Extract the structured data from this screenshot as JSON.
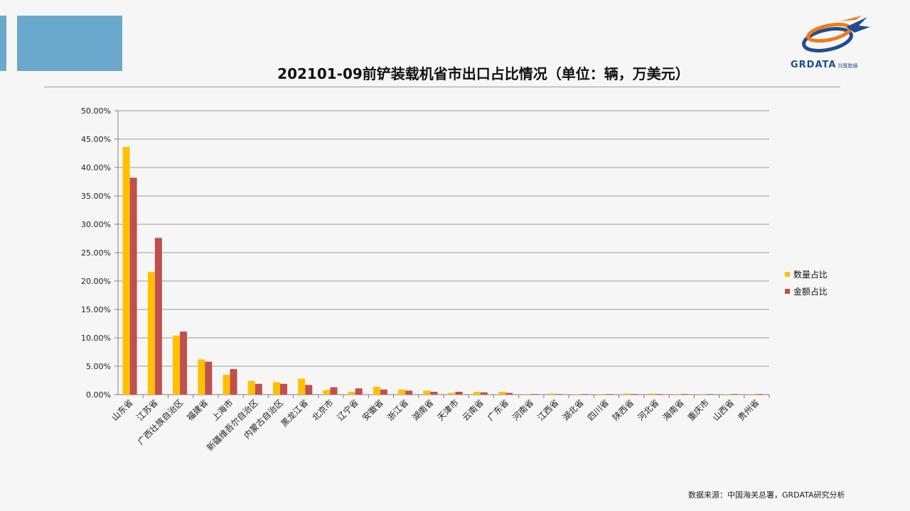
{
  "page": {
    "title": "202101-09前铲装载机省市出口占比情况（单位：辆，万美元）",
    "source": "数据来源：中国海关总署，GRDATA研究分析",
    "logo_text": "GRDATA",
    "logo_subtext": "共策数据",
    "colors": {
      "accent": "#6aa9cc",
      "series1": "#ffc000",
      "series2": "#c0504d"
    }
  },
  "chart_data": {
    "type": "bar",
    "title": "",
    "xlabel": "",
    "ylabel": "",
    "ylim": [
      0,
      50
    ],
    "yticks": [
      "0.00%",
      "5.00%",
      "10.00%",
      "15.00%",
      "20.00%",
      "25.00%",
      "30.00%",
      "35.00%",
      "40.00%",
      "45.00%",
      "50.00%"
    ],
    "grid": true,
    "legend": "right",
    "categories": [
      "山东省",
      "江苏省",
      "广西壮族自治区",
      "福建省",
      "上海市",
      "新疆维吾尔自治区",
      "内蒙古自治区",
      "黑龙江省",
      "北京市",
      "辽宁省",
      "安徽省",
      "浙江省",
      "湖南省",
      "天津市",
      "云南省",
      "广东省",
      "河南省",
      "江西省",
      "湖北省",
      "四川省",
      "陕西省",
      "河北省",
      "海南省",
      "重庆市",
      "山西省",
      "贵州省"
    ],
    "series": [
      {
        "name": "数量占比",
        "color": "#ffc000",
        "values": [
          43.6,
          21.6,
          10.4,
          6.2,
          3.5,
          2.4,
          2.2,
          2.8,
          0.8,
          0.5,
          1.4,
          0.9,
          0.7,
          0.3,
          0.5,
          0.5,
          0.1,
          0.2,
          0.1,
          0.1,
          0.2,
          0.2,
          0.1,
          0.1,
          0.1,
          0.1
        ]
      },
      {
        "name": "金额占比",
        "color": "#c0504d",
        "values": [
          38.2,
          27.6,
          11.1,
          5.8,
          4.5,
          1.9,
          1.9,
          1.7,
          1.3,
          1.1,
          0.9,
          0.7,
          0.5,
          0.5,
          0.4,
          0.3,
          0.1,
          0.1,
          0.1,
          0.1,
          0.1,
          0.1,
          0.1,
          0.1,
          0.1,
          0.1
        ]
      }
    ]
  }
}
